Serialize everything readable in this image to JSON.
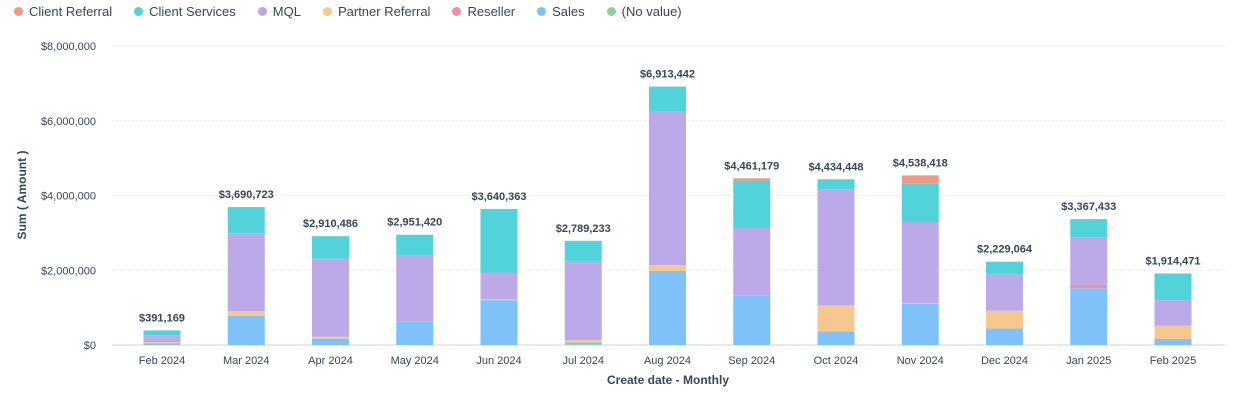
{
  "chart_data": {
    "type": "bar",
    "stacked": true,
    "xlabel": "Create date - Monthly",
    "ylabel": "Sum ( Amount )",
    "ylim": [
      0,
      8000000
    ],
    "yticks": [
      0,
      2000000,
      4000000,
      6000000,
      8000000
    ],
    "ytick_labels": [
      "$0",
      "$2,000,000",
      "$4,000,000",
      "$6,000,000",
      "$8,000,000"
    ],
    "grid": true,
    "legend_position": "top-left",
    "categories": [
      "Feb 2024",
      "Mar 2024",
      "Apr 2024",
      "May 2024",
      "Jun 2024",
      "Jul 2024",
      "Aug 2024",
      "Sep 2024",
      "Oct 2024",
      "Nov 2024",
      "Dec 2024",
      "Jan 2025",
      "Feb 2025"
    ],
    "totals": [
      391169,
      3690723,
      2910486,
      2951420,
      3640363,
      2789233,
      6913442,
      4461179,
      4434448,
      4538418,
      2229064,
      3367433,
      1914471
    ],
    "total_labels": [
      "$391,169",
      "$3,690,723",
      "$2,910,486",
      "$2,951,420",
      "$3,640,363",
      "$2,789,233",
      "$6,913,442",
      "$4,461,179",
      "$4,434,448",
      "$4,538,418",
      "$2,229,064",
      "$3,367,433",
      "$1,914,471"
    ],
    "series": [
      {
        "name": "Sales",
        "color": "#7fc1f9",
        "values": [
          50000,
          780000,
          170000,
          620000,
          1200000,
          20000,
          1980000,
          1330000,
          360000,
          1100000,
          440000,
          1520000,
          160000
        ]
      },
      {
        "name": "(No value)",
        "color": "#8fd19e",
        "values": [
          0,
          0,
          0,
          0,
          0,
          50000,
          0,
          0,
          0,
          0,
          0,
          0,
          0
        ]
      },
      {
        "name": "Partner Referral",
        "color": "#f5c892",
        "values": [
          30000,
          130000,
          50000,
          0,
          20000,
          60000,
          160000,
          0,
          700000,
          20000,
          480000,
          0,
          360000
        ]
      },
      {
        "name": "Reseller",
        "color": "#ee8fa6",
        "values": [
          0,
          0,
          0,
          0,
          0,
          0,
          0,
          0,
          0,
          0,
          0,
          90000,
          0
        ]
      },
      {
        "name": "MQL",
        "color": "#bbaae7",
        "values": [
          180000,
          2080000,
          2090000,
          1790000,
          720000,
          2120000,
          4110000,
          1800000,
          3110000,
          2170000,
          970000,
          1270000,
          680000
        ]
      },
      {
        "name": "Client Services",
        "color": "#52d3da",
        "values": [
          131169,
          700723,
          600486,
          541420,
          1700363,
          539233,
          663442,
          1270000,
          264448,
          1040000,
          339064,
          487433,
          714471
        ]
      },
      {
        "name": "Client Referral",
        "color": "#f09a86",
        "values": [
          0,
          0,
          0,
          0,
          0,
          0,
          0,
          61179,
          0,
          208418,
          0,
          0,
          0
        ]
      }
    ],
    "legend_order": [
      "Client Referral",
      "Client Services",
      "MQL",
      "Partner Referral",
      "Reseller",
      "Sales",
      "(No value)"
    ]
  }
}
